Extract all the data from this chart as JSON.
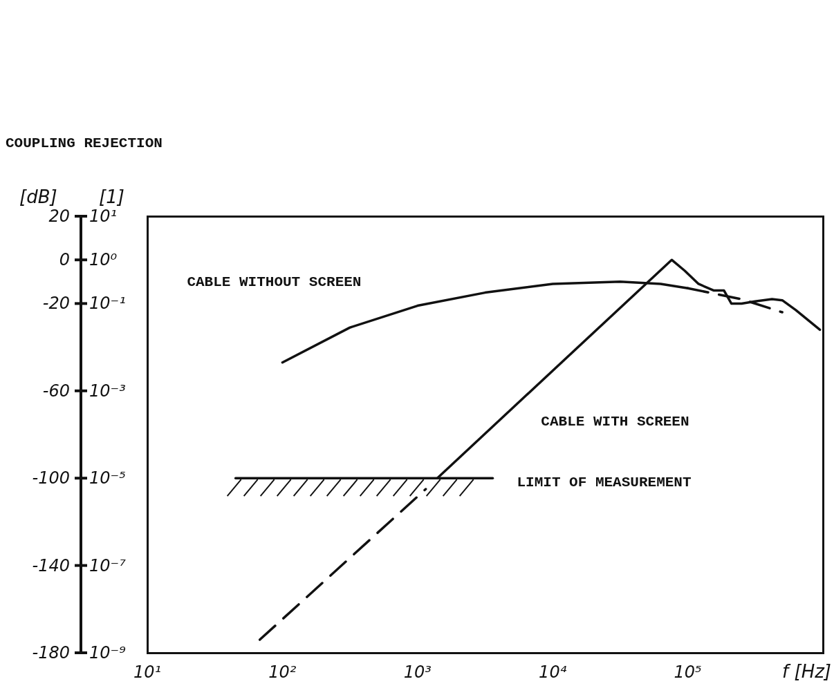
{
  "chart_data": {
    "type": "line",
    "title": "COUPLING REJECTION",
    "xlabel": "f [Hz]",
    "ylabel": "[1]",
    "y2label": "[dB]",
    "log": "xy",
    "xlim": [
      10,
      1000000
    ],
    "xticks": [
      {
        "value": 10,
        "label": "10¹"
      },
      {
        "value": 100,
        "label": "10²"
      },
      {
        "value": 1000,
        "label": "10³"
      },
      {
        "value": 10000,
        "label": "10⁴"
      },
      {
        "value": 100000,
        "label": "10⁵"
      }
    ],
    "y2lim": [
      -180,
      20
    ],
    "y2ticks": [
      20,
      0,
      -20,
      -60,
      -100,
      -140,
      -180
    ],
    "ylim": [
      1e-09,
      10
    ],
    "yticks": [
      {
        "value": 10,
        "label": "10¹"
      },
      {
        "value": 1,
        "label": "10⁰"
      },
      {
        "value": 0.1,
        "label": "10⁻¹"
      },
      {
        "value": 0.001,
        "label": "10⁻³"
      },
      {
        "value": 1e-05,
        "label": "10⁻⁵"
      },
      {
        "value": 1e-07,
        "label": "10⁻⁷"
      },
      {
        "value": 1e-09,
        "label": "10⁻⁹"
      }
    ],
    "series": [
      {
        "name": "CABLE WITHOUT SCREEN",
        "color": "#111111",
        "axis": "y2",
        "line_style": "solid",
        "x": [
          100,
          316,
          1000,
          3160,
          10000,
          31600,
          63000,
          100000
        ],
        "values": [
          -47,
          -31,
          -21,
          -15,
          -11,
          -10,
          -11,
          -13
        ]
      },
      {
        "color": "#111111",
        "axis": "y2",
        "line_style": "dashed",
        "x": [
          100000,
          250000,
          500000
        ],
        "values": [
          -13,
          -18,
          -24
        ]
      },
      {
        "name": "CABLE WITH SCREEN",
        "color": "#111111",
        "axis": "y2",
        "line_style": "solid",
        "x": [
          1400,
          76000,
          95000,
          120000,
          155000,
          185000,
          210000,
          250000,
          315000,
          420000,
          500000,
          630000,
          950000
        ],
        "values": [
          -100,
          0,
          -5,
          -11,
          -14,
          -14,
          -20,
          -20,
          -19,
          -18,
          -18.5,
          -23,
          -32
        ]
      },
      {
        "color": "#111111",
        "axis": "y2",
        "line_style": "dashed",
        "x": [
          68,
          1150
        ],
        "values": [
          -174,
          -105
        ]
      },
      {
        "name": "LIMIT OF MEASUREMENT",
        "color": "#111111",
        "axis": "y2",
        "line_style": "solid",
        "x": [
          45,
          3600
        ],
        "values": [
          -100,
          -100
        ]
      }
    ]
  }
}
